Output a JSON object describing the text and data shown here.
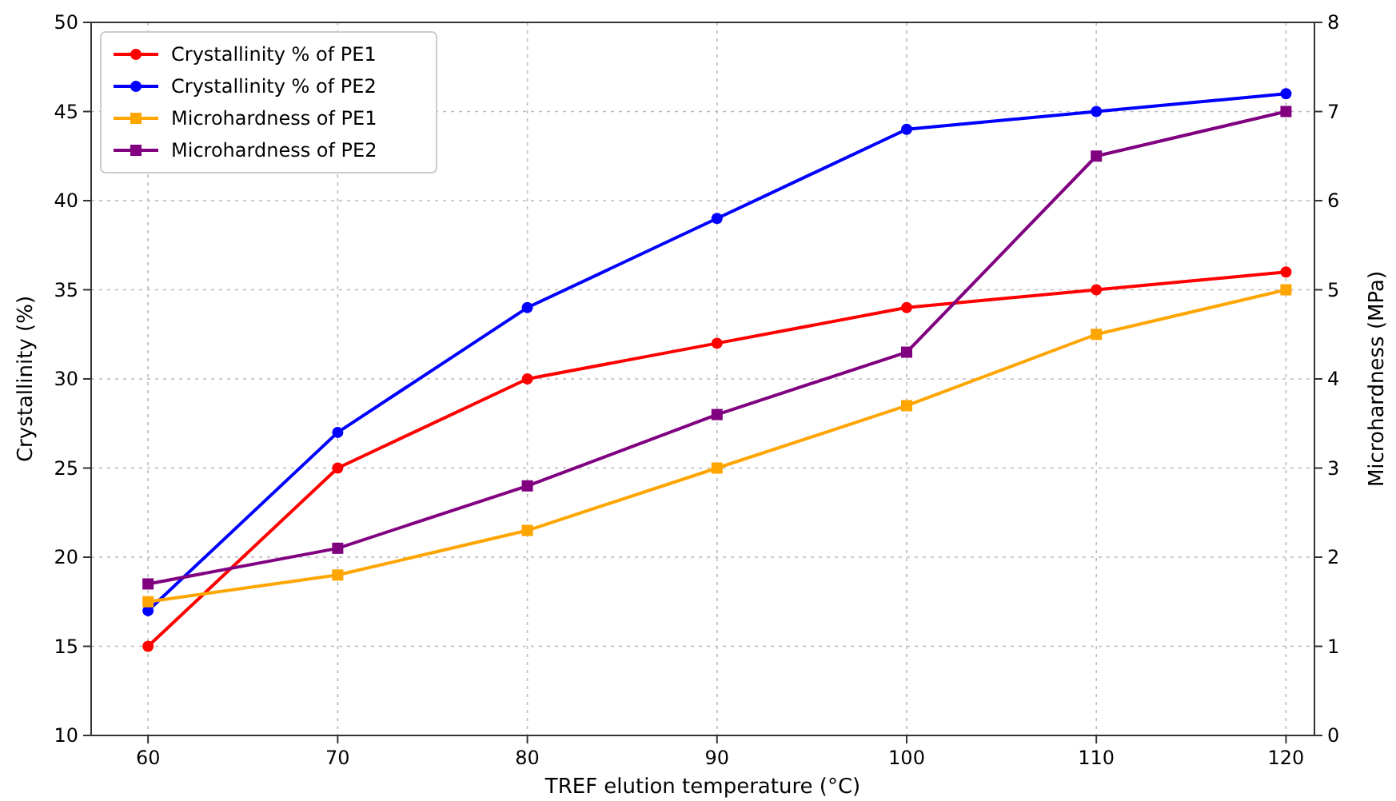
{
  "chart_data": {
    "type": "line",
    "xlabel": "TREF elution temperature (°C)",
    "ylabel": "Crystallinity (%)",
    "y2label": "Microhardness (MPa)",
    "x": [
      60,
      70,
      80,
      90,
      100,
      110,
      120
    ],
    "xlim": [
      57,
      121.5
    ],
    "xticks": [
      60,
      70,
      80,
      90,
      100,
      110,
      120
    ],
    "ylim": [
      10,
      50
    ],
    "yticks": [
      10,
      15,
      20,
      25,
      30,
      35,
      40,
      45,
      50
    ],
    "y2lim": [
      0,
      8
    ],
    "y2ticks": [
      0,
      1,
      2,
      3,
      4,
      5,
      6,
      7,
      8
    ],
    "grid": true,
    "legend": "top left",
    "line_style": "solid",
    "series": [
      {
        "name": "Crystallinity % of PE1",
        "color": "#ff0000",
        "marker": "circle",
        "values": [
          15,
          25,
          30,
          32,
          34,
          35,
          36
        ]
      },
      {
        "name": "Crystallinity % of PE2",
        "color": "#0000ff",
        "marker": "circle",
        "values": [
          17,
          27,
          34,
          39,
          44,
          45,
          46
        ]
      },
      {
        "name": "Microhardness of PE1",
        "color": "#ffa500",
        "marker": "square",
        "axis": "y2",
        "values": [
          1.5,
          1.8,
          2.3,
          3.0,
          3.7,
          4.5,
          5.0
        ]
      },
      {
        "name": "Microhardness of PE2",
        "color": "#800080",
        "marker": "square",
        "axis": "y2",
        "values": [
          1.7,
          2.1,
          2.8,
          3.6,
          4.3,
          6.5,
          7.0
        ]
      }
    ]
  }
}
